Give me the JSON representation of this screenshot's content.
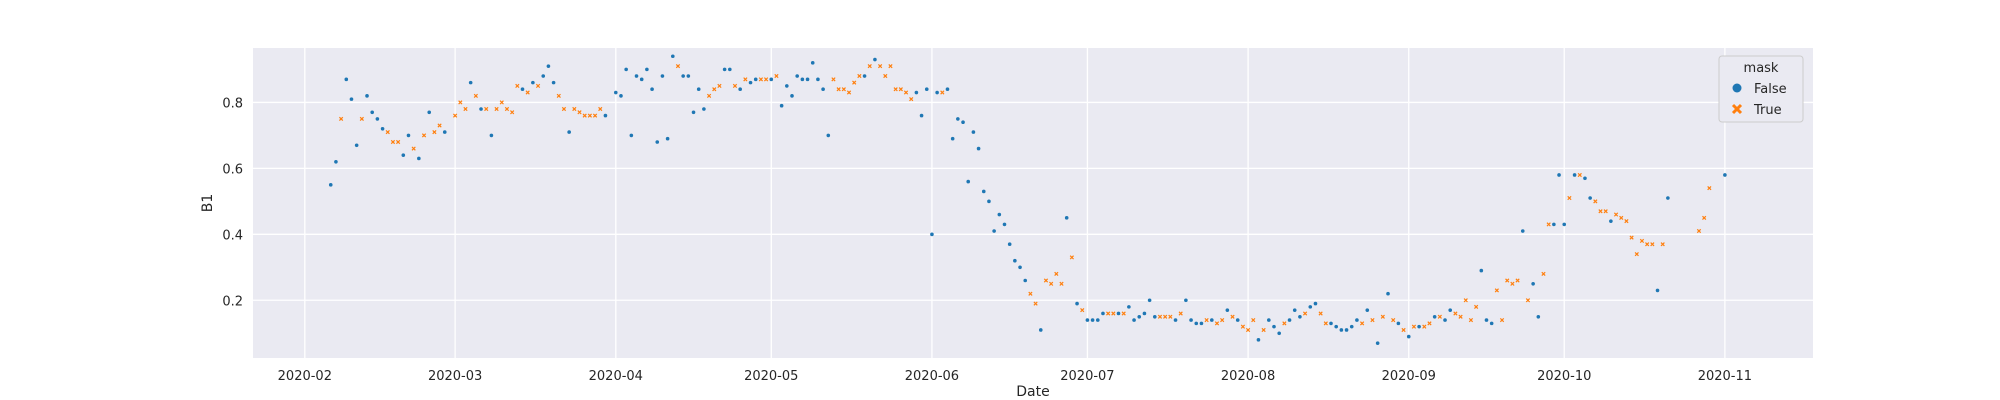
{
  "chart_data": {
    "type": "scatter",
    "title": "",
    "xlabel": "Date",
    "ylabel": "B1",
    "x_type": "date",
    "xlim": [
      "2020-01-22",
      "2020-11-18"
    ],
    "ylim": [
      0.025,
      0.965
    ],
    "x_ticks": [
      "2020-02-01",
      "2020-03-01",
      "2020-04-01",
      "2020-05-01",
      "2020-06-01",
      "2020-07-01",
      "2020-08-01",
      "2020-09-01",
      "2020-10-01",
      "2020-11-01"
    ],
    "x_tick_labels": [
      "2020-02",
      "2020-03",
      "2020-04",
      "2020-05",
      "2020-06",
      "2020-07",
      "2020-08",
      "2020-09",
      "2020-10",
      "2020-11"
    ],
    "y_ticks": [
      0.2,
      0.4,
      0.6,
      0.8
    ],
    "y_tick_labels": [
      "0.2",
      "0.4",
      "0.6",
      "0.8"
    ],
    "grid": true,
    "legend": {
      "title": "mask",
      "placement": "top-right"
    },
    "series": [
      {
        "name": "False",
        "color": "#1f77b4",
        "marker": "circle",
        "points": [
          [
            "2020-02-06",
            0.55
          ],
          [
            "2020-02-07",
            0.62
          ],
          [
            "2020-02-09",
            0.87
          ],
          [
            "2020-02-10",
            0.81
          ],
          [
            "2020-02-11",
            0.67
          ],
          [
            "2020-02-13",
            0.82
          ],
          [
            "2020-02-14",
            0.77
          ],
          [
            "2020-02-15",
            0.75
          ],
          [
            "2020-02-16",
            0.72
          ],
          [
            "2020-02-20",
            0.64
          ],
          [
            "2020-02-21",
            0.7
          ],
          [
            "2020-02-23",
            0.63
          ],
          [
            "2020-02-25",
            0.77
          ],
          [
            "2020-02-28",
            0.71
          ],
          [
            "2020-03-04",
            0.86
          ],
          [
            "2020-03-06",
            0.78
          ],
          [
            "2020-03-08",
            0.7
          ],
          [
            "2020-03-14",
            0.84
          ],
          [
            "2020-03-16",
            0.86
          ],
          [
            "2020-03-18",
            0.88
          ],
          [
            "2020-03-19",
            0.91
          ],
          [
            "2020-03-20",
            0.86
          ],
          [
            "2020-03-23",
            0.71
          ],
          [
            "2020-03-30",
            0.76
          ],
          [
            "2020-04-01",
            0.83
          ],
          [
            "2020-04-02",
            0.82
          ],
          [
            "2020-04-03",
            0.9
          ],
          [
            "2020-04-04",
            0.7
          ],
          [
            "2020-04-05",
            0.88
          ],
          [
            "2020-04-06",
            0.87
          ],
          [
            "2020-04-07",
            0.9
          ],
          [
            "2020-04-08",
            0.84
          ],
          [
            "2020-04-09",
            0.68
          ],
          [
            "2020-04-10",
            0.88
          ],
          [
            "2020-04-11",
            0.69
          ],
          [
            "2020-04-12",
            0.94
          ],
          [
            "2020-04-14",
            0.88
          ],
          [
            "2020-04-15",
            0.88
          ],
          [
            "2020-04-16",
            0.77
          ],
          [
            "2020-04-17",
            0.84
          ],
          [
            "2020-04-18",
            0.78
          ],
          [
            "2020-04-22",
            0.9
          ],
          [
            "2020-04-23",
            0.9
          ],
          [
            "2020-04-25",
            0.84
          ],
          [
            "2020-04-27",
            0.86
          ],
          [
            "2020-04-28",
            0.87
          ],
          [
            "2020-05-01",
            0.87
          ],
          [
            "2020-05-03",
            0.79
          ],
          [
            "2020-05-04",
            0.85
          ],
          [
            "2020-05-05",
            0.82
          ],
          [
            "2020-05-06",
            0.88
          ],
          [
            "2020-05-07",
            0.87
          ],
          [
            "2020-05-08",
            0.87
          ],
          [
            "2020-05-09",
            0.92
          ],
          [
            "2020-05-10",
            0.87
          ],
          [
            "2020-05-11",
            0.84
          ],
          [
            "2020-05-12",
            0.7
          ],
          [
            "2020-05-19",
            0.88
          ],
          [
            "2020-05-21",
            0.93
          ],
          [
            "2020-05-29",
            0.83
          ],
          [
            "2020-05-30",
            0.76
          ],
          [
            "2020-05-31",
            0.84
          ],
          [
            "2020-06-01",
            0.4
          ],
          [
            "2020-06-02",
            0.83
          ],
          [
            "2020-06-04",
            0.84
          ],
          [
            "2020-06-05",
            0.69
          ],
          [
            "2020-06-06",
            0.75
          ],
          [
            "2020-06-07",
            0.74
          ],
          [
            "2020-06-08",
            0.56
          ],
          [
            "2020-06-09",
            0.71
          ],
          [
            "2020-06-10",
            0.66
          ],
          [
            "2020-06-11",
            0.53
          ],
          [
            "2020-06-12",
            0.5
          ],
          [
            "2020-06-13",
            0.41
          ],
          [
            "2020-06-14",
            0.46
          ],
          [
            "2020-06-15",
            0.43
          ],
          [
            "2020-06-16",
            0.37
          ],
          [
            "2020-06-17",
            0.32
          ],
          [
            "2020-06-18",
            0.3
          ],
          [
            "2020-06-19",
            0.26
          ],
          [
            "2020-06-22",
            0.11
          ],
          [
            "2020-06-27",
            0.45
          ],
          [
            "2020-06-29",
            0.19
          ],
          [
            "2020-07-01",
            0.14
          ],
          [
            "2020-07-02",
            0.14
          ],
          [
            "2020-07-03",
            0.14
          ],
          [
            "2020-07-04",
            0.16
          ],
          [
            "2020-07-07",
            0.16
          ],
          [
            "2020-07-09",
            0.18
          ],
          [
            "2020-07-10",
            0.14
          ],
          [
            "2020-07-11",
            0.15
          ],
          [
            "2020-07-12",
            0.16
          ],
          [
            "2020-07-13",
            0.2
          ],
          [
            "2020-07-14",
            0.15
          ],
          [
            "2020-07-18",
            0.14
          ],
          [
            "2020-07-20",
            0.2
          ],
          [
            "2020-07-21",
            0.14
          ],
          [
            "2020-07-22",
            0.13
          ],
          [
            "2020-07-23",
            0.13
          ],
          [
            "2020-07-25",
            0.14
          ],
          [
            "2020-07-28",
            0.17
          ],
          [
            "2020-07-30",
            0.14
          ],
          [
            "2020-08-03",
            0.08
          ],
          [
            "2020-08-05",
            0.14
          ],
          [
            "2020-08-06",
            0.12
          ],
          [
            "2020-08-07",
            0.1
          ],
          [
            "2020-08-09",
            0.14
          ],
          [
            "2020-08-10",
            0.17
          ],
          [
            "2020-08-11",
            0.15
          ],
          [
            "2020-08-13",
            0.18
          ],
          [
            "2020-08-14",
            0.19
          ],
          [
            "2020-08-17",
            0.13
          ],
          [
            "2020-08-18",
            0.12
          ],
          [
            "2020-08-19",
            0.11
          ],
          [
            "2020-08-20",
            0.11
          ],
          [
            "2020-08-21",
            0.12
          ],
          [
            "2020-08-22",
            0.14
          ],
          [
            "2020-08-24",
            0.17
          ],
          [
            "2020-08-26",
            0.07
          ],
          [
            "2020-08-28",
            0.22
          ],
          [
            "2020-08-30",
            0.13
          ],
          [
            "2020-09-01",
            0.09
          ],
          [
            "2020-09-03",
            0.12
          ],
          [
            "2020-09-06",
            0.15
          ],
          [
            "2020-09-08",
            0.14
          ],
          [
            "2020-09-09",
            0.17
          ],
          [
            "2020-09-15",
            0.29
          ],
          [
            "2020-09-16",
            0.14
          ],
          [
            "2020-09-17",
            0.13
          ],
          [
            "2020-09-23",
            0.41
          ],
          [
            "2020-09-25",
            0.25
          ],
          [
            "2020-09-26",
            0.15
          ],
          [
            "2020-09-29",
            0.43
          ],
          [
            "2020-09-30",
            0.58
          ],
          [
            "2020-10-01",
            0.43
          ],
          [
            "2020-10-03",
            0.58
          ],
          [
            "2020-10-05",
            0.57
          ],
          [
            "2020-10-06",
            0.51
          ],
          [
            "2020-10-10",
            0.44
          ],
          [
            "2020-10-19",
            0.23
          ],
          [
            "2020-10-21",
            0.51
          ],
          [
            "2020-11-01",
            0.58
          ]
        ]
      },
      {
        "name": "True",
        "color": "#ff7f0e",
        "marker": "x",
        "points": [
          [
            "2020-02-08",
            0.75
          ],
          [
            "2020-02-12",
            0.75
          ],
          [
            "2020-02-17",
            0.71
          ],
          [
            "2020-02-18",
            0.68
          ],
          [
            "2020-02-19",
            0.68
          ],
          [
            "2020-02-22",
            0.66
          ],
          [
            "2020-02-24",
            0.7
          ],
          [
            "2020-02-26",
            0.71
          ],
          [
            "2020-02-27",
            0.73
          ],
          [
            "2020-03-01",
            0.76
          ],
          [
            "2020-03-02",
            0.8
          ],
          [
            "2020-03-03",
            0.78
          ],
          [
            "2020-03-05",
            0.82
          ],
          [
            "2020-03-07",
            0.78
          ],
          [
            "2020-03-09",
            0.78
          ],
          [
            "2020-03-10",
            0.8
          ],
          [
            "2020-03-11",
            0.78
          ],
          [
            "2020-03-12",
            0.77
          ],
          [
            "2020-03-13",
            0.85
          ],
          [
            "2020-03-15",
            0.83
          ],
          [
            "2020-03-17",
            0.85
          ],
          [
            "2020-03-21",
            0.82
          ],
          [
            "2020-03-22",
            0.78
          ],
          [
            "2020-03-24",
            0.78
          ],
          [
            "2020-03-25",
            0.77
          ],
          [
            "2020-03-26",
            0.76
          ],
          [
            "2020-03-27",
            0.76
          ],
          [
            "2020-03-28",
            0.76
          ],
          [
            "2020-03-29",
            0.78
          ],
          [
            "2020-04-13",
            0.91
          ],
          [
            "2020-04-19",
            0.82
          ],
          [
            "2020-04-20",
            0.84
          ],
          [
            "2020-04-21",
            0.85
          ],
          [
            "2020-04-24",
            0.85
          ],
          [
            "2020-04-26",
            0.87
          ],
          [
            "2020-04-29",
            0.87
          ],
          [
            "2020-04-30",
            0.87
          ],
          [
            "2020-05-02",
            0.88
          ],
          [
            "2020-05-13",
            0.87
          ],
          [
            "2020-05-14",
            0.84
          ],
          [
            "2020-05-15",
            0.84
          ],
          [
            "2020-05-16",
            0.83
          ],
          [
            "2020-05-17",
            0.86
          ],
          [
            "2020-05-18",
            0.88
          ],
          [
            "2020-05-20",
            0.91
          ],
          [
            "2020-05-22",
            0.91
          ],
          [
            "2020-05-23",
            0.88
          ],
          [
            "2020-05-24",
            0.91
          ],
          [
            "2020-05-25",
            0.84
          ],
          [
            "2020-05-26",
            0.84
          ],
          [
            "2020-05-27",
            0.83
          ],
          [
            "2020-05-28",
            0.81
          ],
          [
            "2020-06-03",
            0.83
          ],
          [
            "2020-06-20",
            0.22
          ],
          [
            "2020-06-21",
            0.19
          ],
          [
            "2020-06-23",
            0.26
          ],
          [
            "2020-06-24",
            0.25
          ],
          [
            "2020-06-25",
            0.28
          ],
          [
            "2020-06-26",
            0.25
          ],
          [
            "2020-06-28",
            0.33
          ],
          [
            "2020-06-30",
            0.17
          ],
          [
            "2020-07-05",
            0.16
          ],
          [
            "2020-07-06",
            0.16
          ],
          [
            "2020-07-08",
            0.16
          ],
          [
            "2020-07-15",
            0.15
          ],
          [
            "2020-07-16",
            0.15
          ],
          [
            "2020-07-17",
            0.15
          ],
          [
            "2020-07-19",
            0.16
          ],
          [
            "2020-07-24",
            0.14
          ],
          [
            "2020-07-26",
            0.13
          ],
          [
            "2020-07-27",
            0.14
          ],
          [
            "2020-07-29",
            0.15
          ],
          [
            "2020-07-31",
            0.12
          ],
          [
            "2020-08-01",
            0.11
          ],
          [
            "2020-08-02",
            0.14
          ],
          [
            "2020-08-04",
            0.11
          ],
          [
            "2020-08-08",
            0.13
          ],
          [
            "2020-08-12",
            0.16
          ],
          [
            "2020-08-15",
            0.16
          ],
          [
            "2020-08-16",
            0.13
          ],
          [
            "2020-08-23",
            0.13
          ],
          [
            "2020-08-25",
            0.14
          ],
          [
            "2020-08-27",
            0.15
          ],
          [
            "2020-08-29",
            0.14
          ],
          [
            "2020-08-31",
            0.11
          ],
          [
            "2020-09-02",
            0.12
          ],
          [
            "2020-09-04",
            0.12
          ],
          [
            "2020-09-05",
            0.13
          ],
          [
            "2020-09-07",
            0.15
          ],
          [
            "2020-09-10",
            0.16
          ],
          [
            "2020-09-11",
            0.15
          ],
          [
            "2020-09-12",
            0.2
          ],
          [
            "2020-09-13",
            0.14
          ],
          [
            "2020-09-14",
            0.18
          ],
          [
            "2020-09-18",
            0.23
          ],
          [
            "2020-09-19",
            0.14
          ],
          [
            "2020-09-20",
            0.26
          ],
          [
            "2020-09-21",
            0.25
          ],
          [
            "2020-09-22",
            0.26
          ],
          [
            "2020-09-24",
            0.2
          ],
          [
            "2020-09-27",
            0.28
          ],
          [
            "2020-09-28",
            0.43
          ],
          [
            "2020-10-02",
            0.51
          ],
          [
            "2020-10-04",
            0.58
          ],
          [
            "2020-10-07",
            0.5
          ],
          [
            "2020-10-08",
            0.47
          ],
          [
            "2020-10-09",
            0.47
          ],
          [
            "2020-10-11",
            0.46
          ],
          [
            "2020-10-12",
            0.45
          ],
          [
            "2020-10-13",
            0.44
          ],
          [
            "2020-10-14",
            0.39
          ],
          [
            "2020-10-15",
            0.34
          ],
          [
            "2020-10-16",
            0.38
          ],
          [
            "2020-10-17",
            0.37
          ],
          [
            "2020-10-18",
            0.37
          ],
          [
            "2020-10-20",
            0.37
          ],
          [
            "2020-10-27",
            0.41
          ],
          [
            "2020-10-28",
            0.45
          ],
          [
            "2020-10-29",
            0.54
          ]
        ]
      }
    ]
  }
}
